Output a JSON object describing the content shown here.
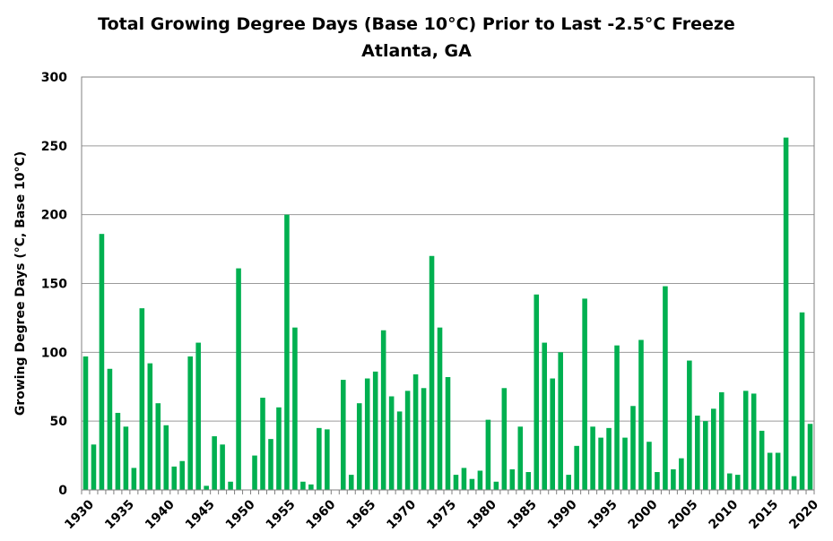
{
  "chart_data": {
    "type": "bar",
    "title": "Total Growing Degree Days (Base 10°C) Prior to Last -2.5°C Freeze",
    "subtitle": "Atlanta, GA",
    "xlabel": "",
    "ylabel": "Growing Degree Days (°C, Base 10°C)",
    "ylim": [
      0,
      300
    ],
    "yticks": [
      0,
      50,
      100,
      150,
      200,
      250,
      300
    ],
    "xtick_labels": [
      "1930",
      "1935",
      "1940",
      "1945",
      "1950",
      "1955",
      "1960",
      "1965",
      "1970",
      "1975",
      "1980",
      "1985",
      "1990",
      "1995",
      "2000",
      "2005",
      "2010",
      "2015",
      "2020"
    ],
    "grid": "horizontal",
    "bar_color": "#00B050",
    "categories": [
      "1930",
      "1931",
      "1932",
      "1933",
      "1934",
      "1935",
      "1936",
      "1937",
      "1938",
      "1939",
      "1940",
      "1941",
      "1942",
      "1943",
      "1944",
      "1945",
      "1946",
      "1947",
      "1948",
      "1949",
      "1950",
      "1951",
      "1952",
      "1953",
      "1954",
      "1955",
      "1956",
      "1957",
      "1958",
      "1959",
      "1960",
      "1961",
      "1962",
      "1963",
      "1964",
      "1965",
      "1966",
      "1967",
      "1968",
      "1969",
      "1970",
      "1971",
      "1972",
      "1973",
      "1974",
      "1975",
      "1976",
      "1977",
      "1978",
      "1979",
      "1980",
      "1981",
      "1982",
      "1983",
      "1984",
      "1985",
      "1986",
      "1987",
      "1988",
      "1989",
      "1990",
      "1991",
      "1992",
      "1993",
      "1994",
      "1995",
      "1996",
      "1997",
      "1998",
      "1999",
      "2000",
      "2001",
      "2002",
      "2003",
      "2004",
      "2005",
      "2006",
      "2007",
      "2008",
      "2009",
      "2010",
      "2011",
      "2012",
      "2013",
      "2014",
      "2015",
      "2016",
      "2017",
      "2018",
      "2019",
      "2020"
    ],
    "values": [
      97,
      33,
      186,
      88,
      56,
      46,
      16,
      132,
      92,
      63,
      47,
      17,
      21,
      97,
      107,
      3,
      39,
      33,
      6,
      161,
      0,
      25,
      67,
      37,
      60,
      200,
      118,
      6,
      4,
      45,
      44,
      0,
      80,
      11,
      63,
      81,
      86,
      116,
      68,
      57,
      72,
      84,
      74,
      170,
      118,
      82,
      11,
      16,
      8,
      14,
      51,
      6,
      74,
      15,
      46,
      13,
      142,
      107,
      81,
      100,
      11,
      32,
      139,
      46,
      38,
      45,
      105,
      38,
      61,
      109,
      35,
      13,
      148,
      15,
      23,
      94,
      54,
      50,
      59,
      71,
      12,
      11,
      72,
      70,
      43,
      27,
      27,
      256,
      10,
      129,
      48
    ]
  }
}
